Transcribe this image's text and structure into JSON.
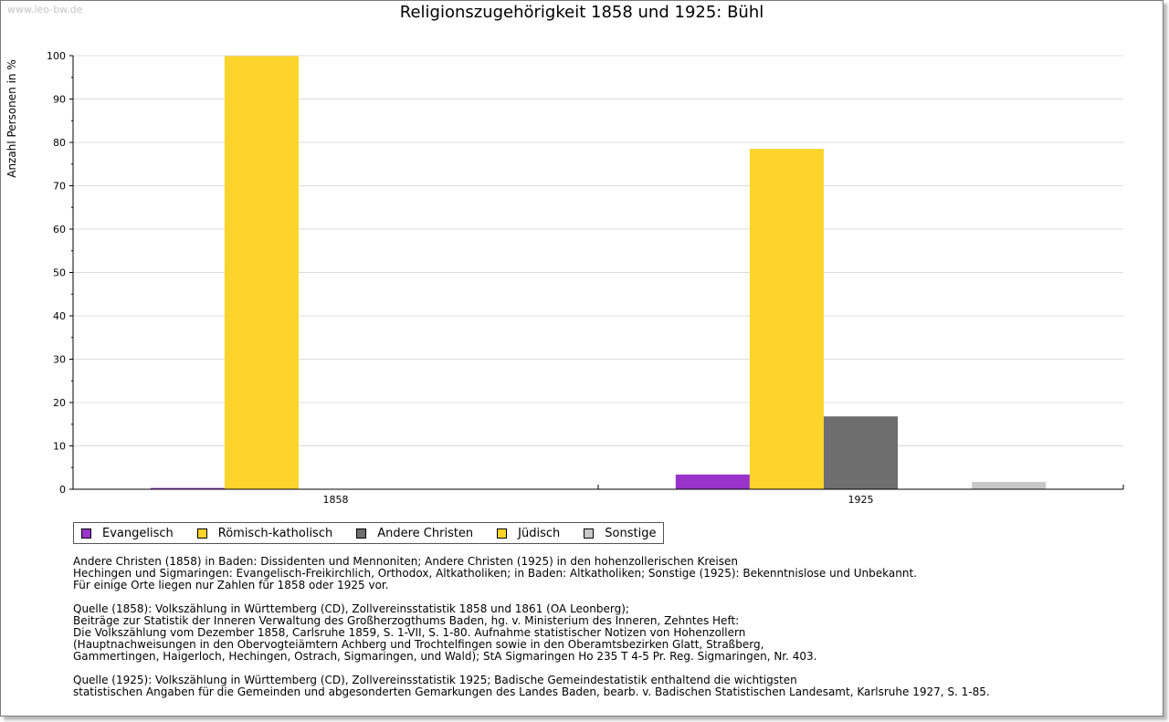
{
  "watermark": "www.leo-bw.de",
  "chart_data": {
    "type": "bar",
    "title": "Religionszugehörigkeit 1858 und 1925: Bühl",
    "ylabel": "Anzahl Personen in %",
    "xlabel": "",
    "ylim": [
      0,
      100
    ],
    "yticks": [
      0,
      10,
      20,
      30,
      40,
      50,
      60,
      70,
      80,
      90,
      100
    ],
    "grid": true,
    "legend_position": "bottom",
    "categories": [
      "1858",
      "1925"
    ],
    "series": [
      {
        "name": "Evangelisch",
        "color": "#9933cc",
        "values": [
          0.3,
          3.4
        ]
      },
      {
        "name": "Römisch-katholisch",
        "color": "#fcd42c",
        "values": [
          99.9,
          78.5
        ]
      },
      {
        "name": "Andere Christen",
        "color": "#6e6e6e",
        "values": [
          0,
          16.8
        ]
      },
      {
        "name": "Jüdisch",
        "color": "#fcd42c",
        "values": [
          0,
          0
        ]
      },
      {
        "name": "Sonstige",
        "color": "#c8c8c8",
        "values": [
          0,
          1.7
        ]
      }
    ]
  },
  "notes": [
    "Andere Christen (1858) in Baden: Dissidenten und Mennoniten; Andere Christen (1925) in den hohenzollerischen Kreisen",
    "Hechingen und Sigmaringen: Evangelisch-Freikirchlich, Orthodox, Altkatholiken; in Baden: Altkatholiken; Sonstige (1925): Bekenntnislose und Unbekannt.",
    "Für einige Orte liegen nur Zahlen für 1858 oder 1925 vor.",
    "",
    "Quelle (1858): Volkszählung in Württemberg (CD), Zollvereinsstatistik 1858 und 1861 (OA Leonberg);",
    "Beiträge zur Statistik der Inneren Verwaltung des Großherzogthums Baden, hg. v. Ministerium des Inneren, Zehntes Heft:",
    "Die Volkszählung vom Dezember 1858, Carlsruhe 1859, S. 1-VII, S. 1-80. Aufnahme statistischer Notizen von Hohenzollern",
    "(Hauptnachweisungen in den Obervogteiämtern Achberg und Trochtelfingen sowie in den Oberamtsbezirken Glatt, Straßberg,",
    "Gammertingen, Haigerloch, Hechingen, Ostrach, Sigmaringen, und Wald); StA Sigmaringen Ho 235 T 4-5 Pr. Reg. Sigmaringen, Nr. 403.",
    "",
    "Quelle (1925): Volkszählung in Württemberg (CD), Zollvereinsstatistik 1925; Badische Gemeindestatistik enthaltend die wichtigsten",
    "statistischen Angaben für die Gemeinden und abgesonderten Gemarkungen des Landes Baden, bearb. v. Badischen Statistischen Landesamt, Karlsruhe 1927, S. 1-85."
  ]
}
